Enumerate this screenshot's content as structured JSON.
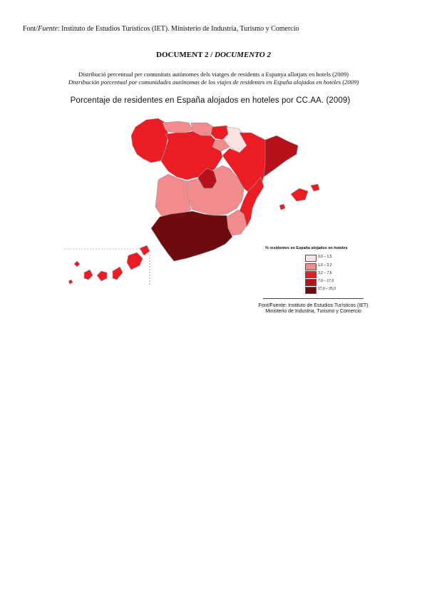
{
  "source_line": {
    "prefix": "Font/",
    "fuente": "Fuente",
    "text": ": Instituto de Estudios Turísticos (IET). Ministerio de Industria, Turismo y Comercio"
  },
  "document_title": {
    "catalan": "DOCUMENT 2 / ",
    "spanish": "DOCUMENTO 2"
  },
  "caption": {
    "catalan": "Distribució percentual per comunitats autònomes dels viatges de residents a Espanya allotjats en hotels (2009)",
    "spanish": "Distribución porcentual por comunidades autónomas de los viajes de residentes en España alojados en hoteles (2009)"
  },
  "map": {
    "title": "Porcentaje de residentes en España alojados en hoteles por CC.AA. (2009)",
    "legend_title": "% residentes en España alojados en hoteles",
    "legend": [
      {
        "label": "0,0 – 1,5",
        "color": "#fce1e3"
      },
      {
        "label": "1,5 – 3,2",
        "color": "#f28b8e"
      },
      {
        "label": "3,2 – 7,6",
        "color": "#ec1c24"
      },
      {
        "label": "7,6 – 17,0",
        "color": "#b5121b"
      },
      {
        "label": "17,0 – 25,0",
        "color": "#6e0b0e"
      }
    ],
    "source_line1": "Font/Fuente: Instituto de Estudios Turísticos (IET)",
    "source_line2": "Ministerio de Industria, Turismo y Comercio"
  },
  "regions": [
    {
      "name": "Galicia",
      "class": 2
    },
    {
      "name": "Asturias",
      "class": 1
    },
    {
      "name": "Cantabria",
      "class": 1
    },
    {
      "name": "País Vasco",
      "class": 2
    },
    {
      "name": "Navarra",
      "class": 0
    },
    {
      "name": "La Rioja",
      "class": 1
    },
    {
      "name": "Aragón",
      "class": 2
    },
    {
      "name": "Cataluña",
      "class": 3
    },
    {
      "name": "Castilla y León",
      "class": 2
    },
    {
      "name": "Madrid",
      "class": 3
    },
    {
      "name": "Castilla-La Mancha",
      "class": 1
    },
    {
      "name": "Extremadura",
      "class": 1
    },
    {
      "name": "Comunitat Valenciana",
      "class": 2
    },
    {
      "name": "Murcia",
      "class": 1
    },
    {
      "name": "Andalucía",
      "class": 4
    },
    {
      "name": "Illes Balears",
      "class": 2
    },
    {
      "name": "Canarias",
      "class": 2
    }
  ]
}
